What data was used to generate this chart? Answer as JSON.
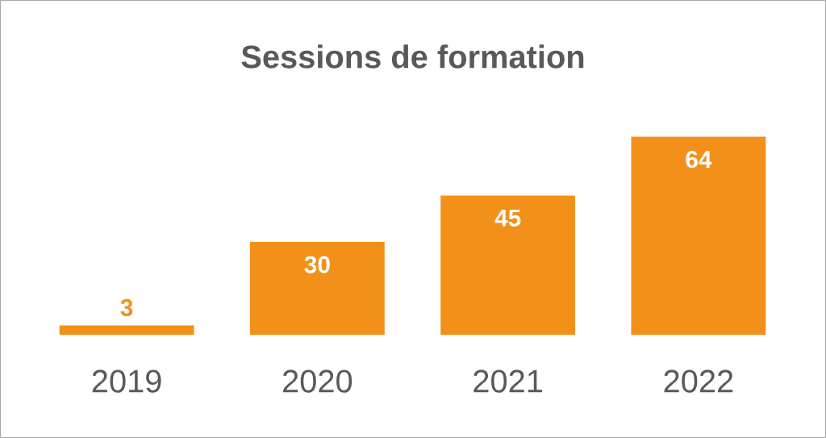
{
  "chart_data": {
    "type": "bar",
    "title": "Sessions de formation",
    "categories": [
      "2019",
      "2020",
      "2021",
      "2022"
    ],
    "values": [
      3,
      30,
      45,
      64
    ],
    "color": "#f39019",
    "data_labels": true
  }
}
